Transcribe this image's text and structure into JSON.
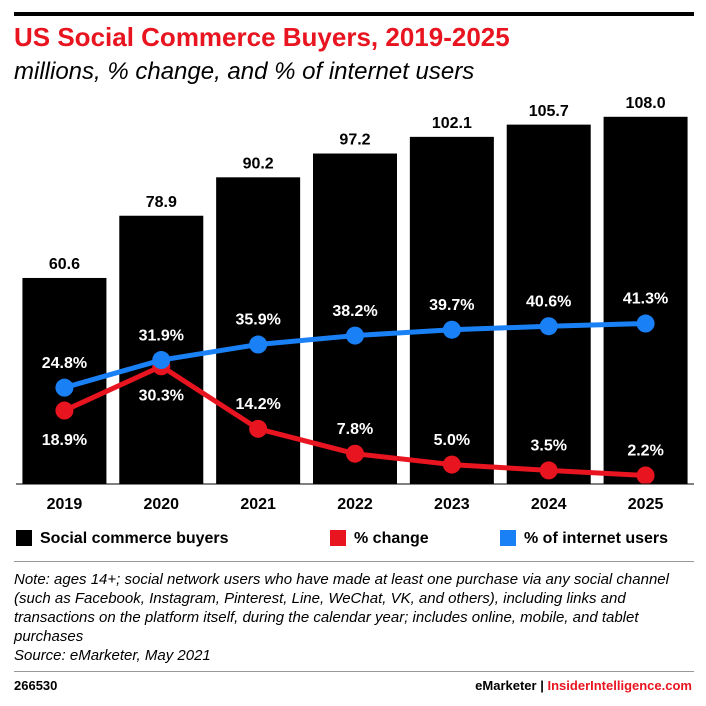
{
  "chart_data": {
    "type": "bar",
    "title": "US Social Commerce Buyers, 2019-2025",
    "subtitle": "millions, % change, and % of internet users",
    "categories": [
      "2019",
      "2020",
      "2021",
      "2022",
      "2023",
      "2024",
      "2025"
    ],
    "series": [
      {
        "name": "Social commerce buyers",
        "color": "#000000",
        "type": "bar",
        "values": [
          60.6,
          78.9,
          90.2,
          97.2,
          102.1,
          105.7,
          108.0
        ],
        "value_labels": [
          "60.6",
          "78.9",
          "90.2",
          "97.2",
          "102.1",
          "105.7",
          "108.0"
        ]
      },
      {
        "name": "% change",
        "color": "#e8141f",
        "type": "line",
        "axis": "y2",
        "values": [
          18.9,
          30.3,
          14.2,
          7.8,
          5.0,
          3.5,
          2.2
        ],
        "value_labels": [
          "18.9%",
          "30.3%",
          "14.2%",
          "7.8%",
          "5.0%",
          "3.5%",
          "2.2%"
        ]
      },
      {
        "name": "% of internet users",
        "color": "#1a80f5",
        "type": "line",
        "axis": "y2",
        "values": [
          24.8,
          31.9,
          35.9,
          38.2,
          39.7,
          40.6,
          41.3
        ],
        "value_labels": [
          "24.8%",
          "31.9%",
          "35.9%",
          "38.2%",
          "39.7%",
          "40.6%",
          "41.3%"
        ]
      }
    ],
    "ylim": [
      0,
      120
    ],
    "y2lim": [
      0,
      105
    ]
  },
  "note": "Note: ages 14+; social network users who have made at least one purchase via any social channel (such as Facebook, Instagram, Pinterest, Line, WeChat, VK, and others), including links and transactions on the platform itself, during the calendar year; includes online, mobile, and tablet purchases",
  "source": "Source: eMarketer, May 2021",
  "footer": {
    "id": "266530",
    "brand": "eMarketer",
    "separator": "|",
    "site": "InsiderIntelligence.com"
  }
}
